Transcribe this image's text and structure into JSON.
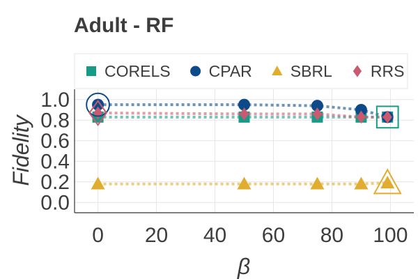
{
  "chart_data": {
    "type": "line",
    "title": "Adult - RF",
    "xlabel": "β",
    "ylabel": "Fidelity",
    "xlim": [
      -8,
      108
    ],
    "ylim": [
      -0.1,
      1.1
    ],
    "xticks": [
      0,
      20,
      40,
      60,
      80,
      100
    ],
    "yticks": [
      0.0,
      0.2,
      0.4,
      0.6,
      0.8,
      1.0
    ],
    "xtick_labels": [
      "0",
      "20",
      "40",
      "60",
      "80",
      "100"
    ],
    "ytick_labels": [
      "0.0",
      "0.2",
      "0.4",
      "0.6",
      "0.8",
      "1.0"
    ],
    "grid": true,
    "legend_position": "top",
    "series": [
      {
        "name": "CORELS",
        "color": "#169c86",
        "marker": "square",
        "line_style": "dotted",
        "x": [
          0,
          50,
          75,
          90,
          99
        ],
        "y": [
          0.83,
          0.83,
          0.83,
          0.83,
          0.83
        ],
        "highlight_x": 99
      },
      {
        "name": "CPAR",
        "color": "#0d4a8a",
        "marker": "circle",
        "line_style": "dotted",
        "x": [
          0,
          50,
          75,
          90,
          99
        ],
        "y": [
          0.95,
          0.95,
          0.94,
          0.9,
          0.83
        ],
        "highlight_x": 0
      },
      {
        "name": "SBRL",
        "color": "#e0ad2e",
        "marker": "triangle",
        "line_style": "dotted",
        "x": [
          0,
          50,
          75,
          90,
          99
        ],
        "y": [
          0.18,
          0.18,
          0.18,
          0.18,
          0.19
        ],
        "highlight_x": 99
      },
      {
        "name": "RRS",
        "color": "#c95a70",
        "marker": "diamond",
        "line_style": "dotted",
        "x": [
          0,
          50,
          75,
          90,
          99
        ],
        "y": [
          0.87,
          0.86,
          0.86,
          0.83,
          0.83
        ],
        "highlight_x": 0
      }
    ]
  }
}
